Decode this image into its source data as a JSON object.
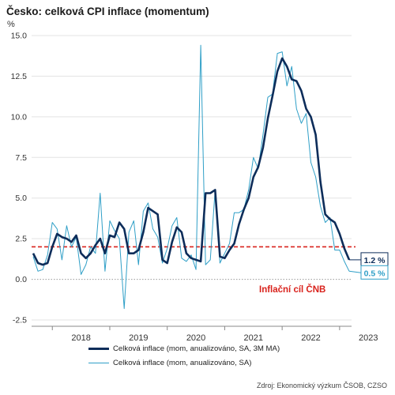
{
  "title": "Česko: celková CPI inflace (momentum)",
  "y_unit": "%",
  "target_label": "Inflační cíl ČNB",
  "source": "Zdroj: Ekonomický výzkum ČSOB, CZSO",
  "end_labels": {
    "ma": "1.2 %",
    "mom": "0.5 %"
  },
  "colors": {
    "ma": "#0d2d5a",
    "mom": "#2f9fc7",
    "target": "#d9221c"
  },
  "chart_data": {
    "type": "line",
    "title": "Česko: celková CPI inflace (momentum)",
    "ylabel": "%",
    "ylim": [
      -2.5,
      15
    ],
    "yticks": [
      "15.0",
      "12.5",
      "10.0",
      "7.5",
      "5.0",
      "2.5",
      "0.0",
      "-2.5"
    ],
    "year_labels": [
      "2018",
      "2019",
      "2020",
      "2021",
      "2022",
      "2023"
    ],
    "x_start": "2017-09",
    "target": 2.0,
    "series": [
      {
        "name": "Celková inflace (mom, anualizováno, SA, 3M MA)",
        "values": [
          1.6,
          1.0,
          0.9,
          1.0,
          2.0,
          2.8,
          2.6,
          2.5,
          2.3,
          2.7,
          1.6,
          1.3,
          1.6,
          2.1,
          2.5,
          1.6,
          2.7,
          2.6,
          3.5,
          3.1,
          1.6,
          1.6,
          1.8,
          2.9,
          4.4,
          4.2,
          4.0,
          1.2,
          1.0,
          2.3,
          3.2,
          2.9,
          1.6,
          1.3,
          1.2,
          1.1,
          5.3,
          5.3,
          5.5,
          1.4,
          1.3,
          1.8,
          2.2,
          3.4,
          4.3,
          5.0,
          6.3,
          6.9,
          8.1,
          9.9,
          11.3,
          12.8,
          13.6,
          13.1,
          12.3,
          12.2,
          11.6,
          10.5,
          10.0,
          8.9,
          6.0,
          4.0,
          3.7,
          3.5,
          2.8,
          1.9,
          1.2
        ]
      },
      {
        "name": "Celková inflace (mom, anualizováno, SA)",
        "values": [
          1.4,
          0.5,
          0.6,
          1.5,
          3.5,
          3.1,
          1.2,
          3.3,
          2.0,
          2.6,
          0.3,
          0.9,
          2.0,
          1.6,
          5.3,
          0.5,
          3.6,
          3.0,
          2.5,
          -1.8,
          2.9,
          3.6,
          0.9,
          4.2,
          4.7,
          3.1,
          2.6,
          1.0,
          1.9,
          3.3,
          3.8,
          1.3,
          1.1,
          1.5,
          0.6,
          14.4,
          0.9,
          1.2,
          5.5,
          1.0,
          1.6,
          2.2,
          4.1,
          4.1,
          4.3,
          5.5,
          7.5,
          6.8,
          8.9,
          11.2,
          11.4,
          13.9,
          14.0,
          11.9,
          13.1,
          10.5,
          9.6,
          10.2,
          7.2,
          6.3,
          4.5,
          3.5,
          3.8,
          1.8,
          1.8,
          1.1,
          0.5
        ]
      }
    ],
    "legend_position": "bottom"
  }
}
